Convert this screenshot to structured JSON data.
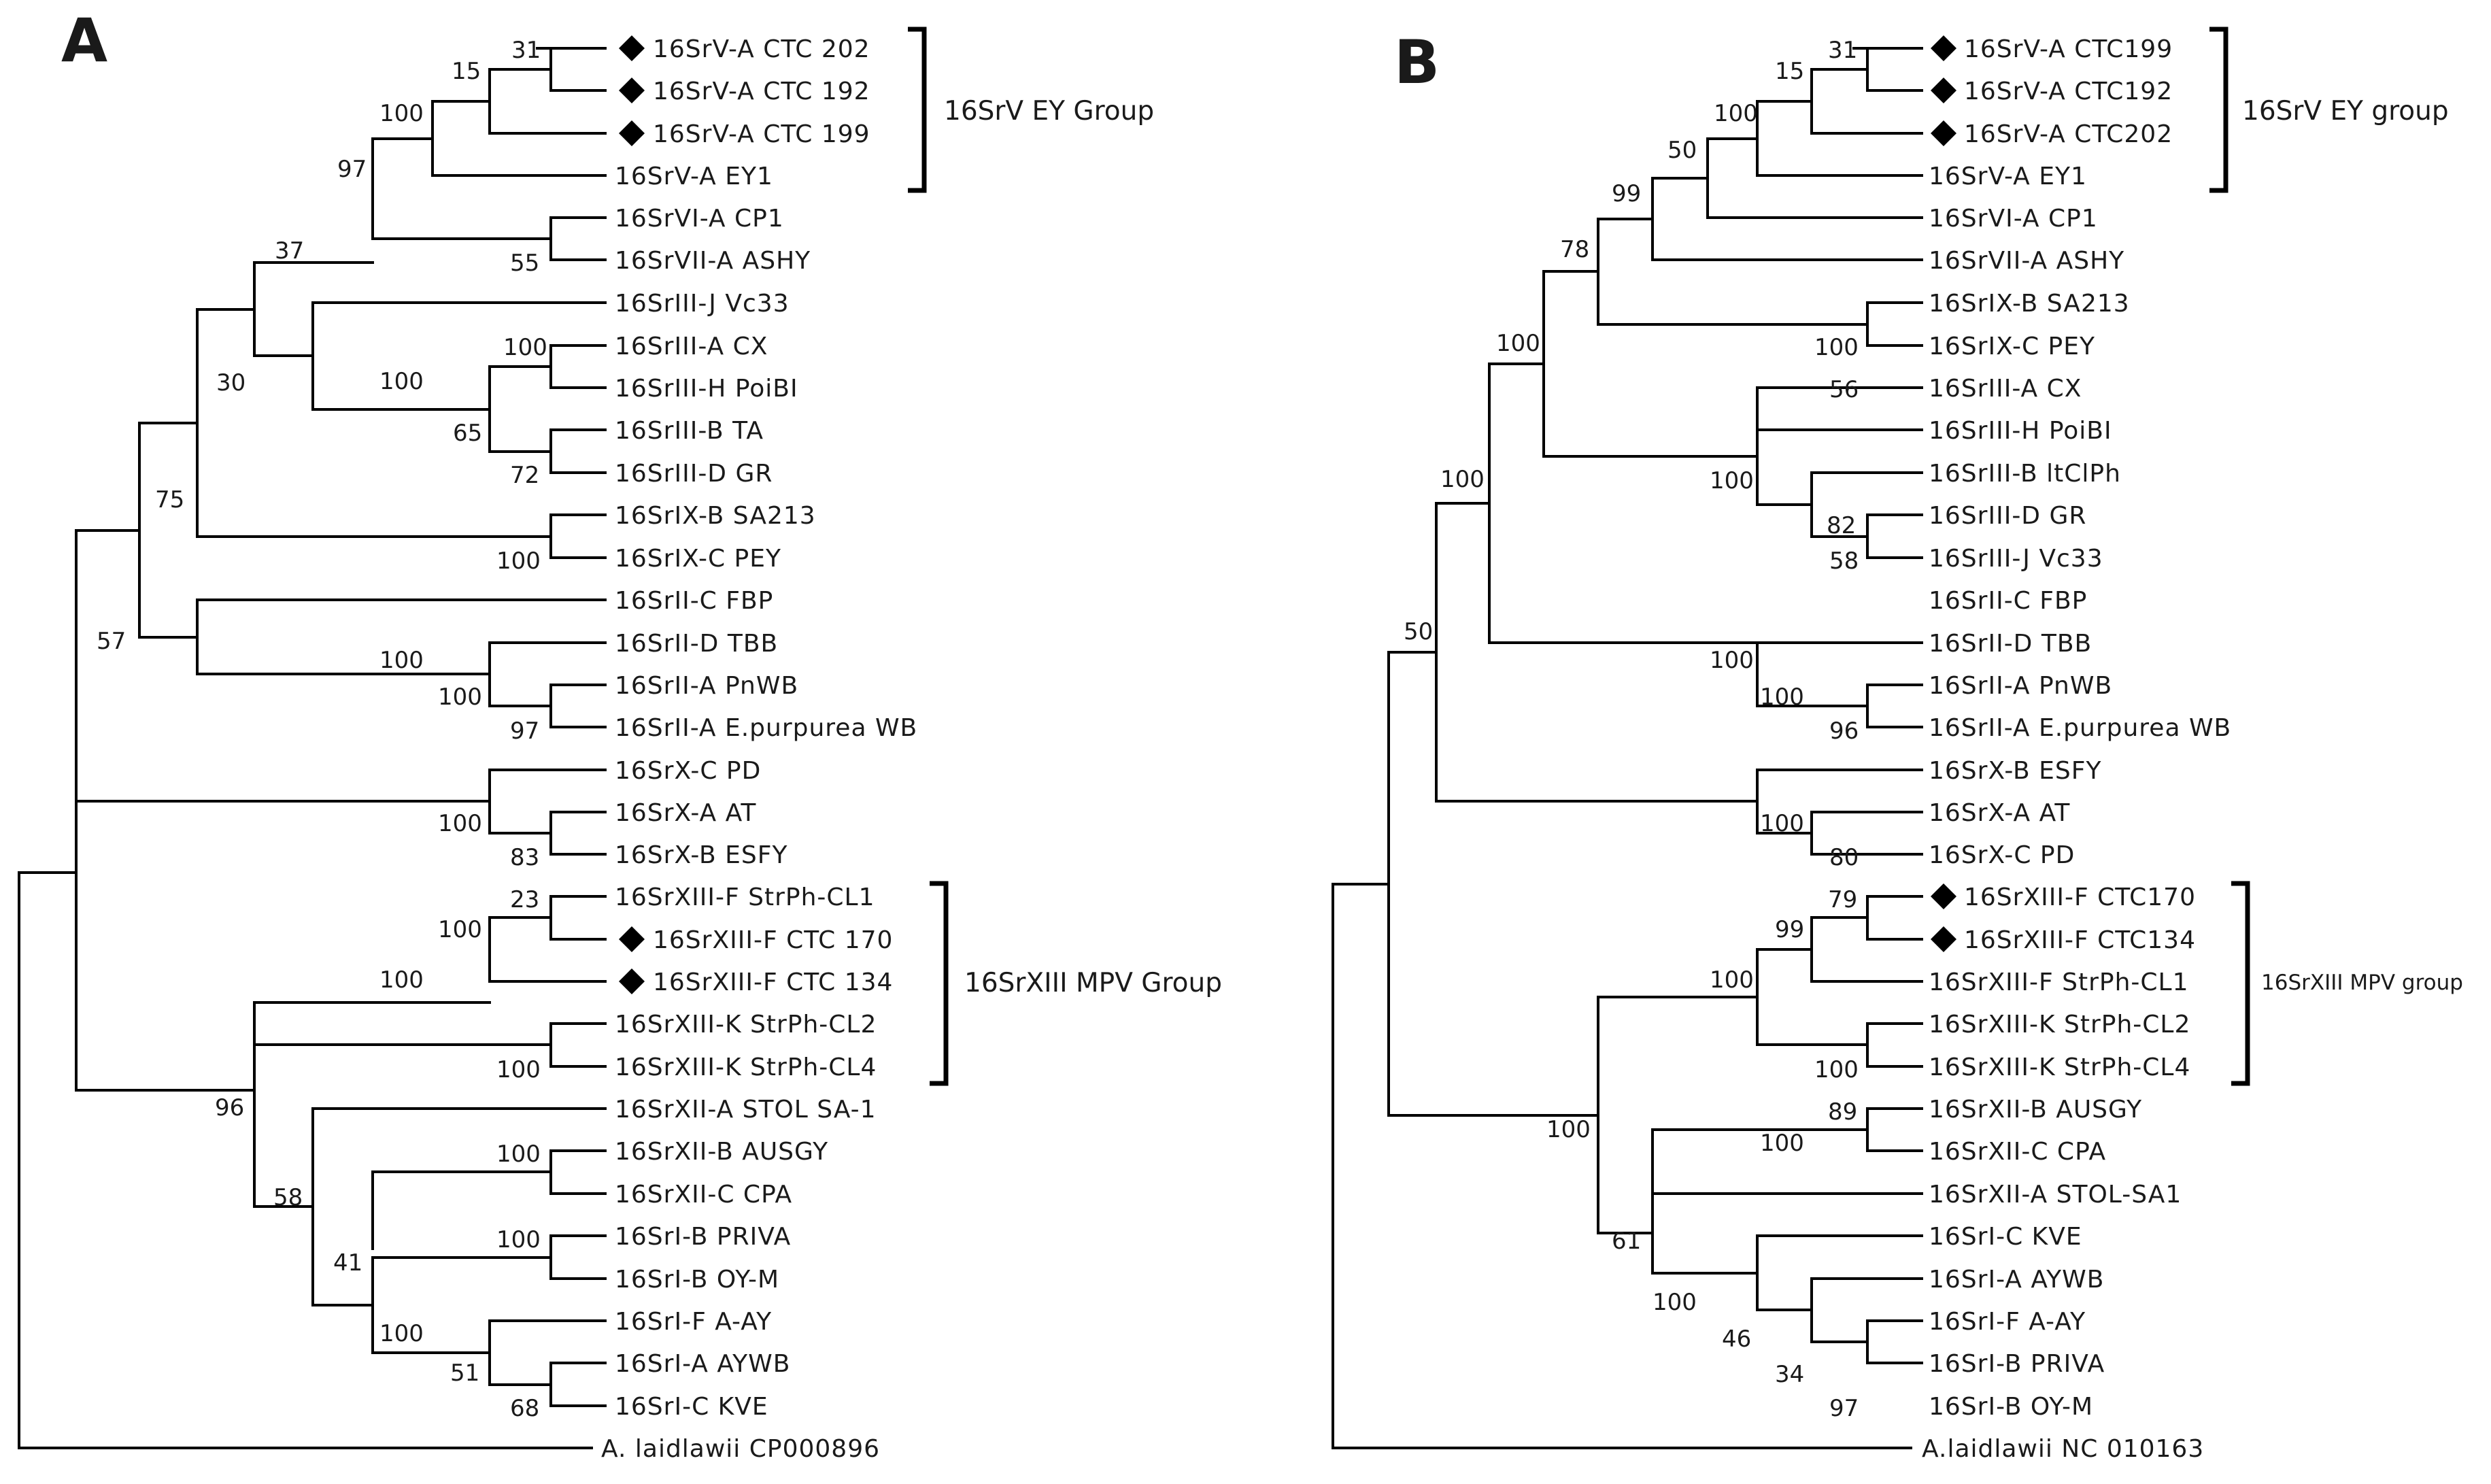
{
  "panel_a": {
    "letter": "A",
    "support": {
      "n31": "31",
      "n15": "15",
      "n100a": "100",
      "n97": "97",
      "n37": "37",
      "n55": "55",
      "n30": "30",
      "n100b": "100",
      "n100c": "100",
      "n65": "65",
      "n72": "72",
      "n75": "75",
      "n100d": "100",
      "n57": "57",
      "n100e": "100",
      "n100f": "100",
      "n97b": "97",
      "n100g": "100",
      "n83": "83",
      "n23": "23",
      "n100h": "100",
      "n100i": "100",
      "n100j": "100",
      "n96": "96",
      "n100k": "100",
      "n58": "58",
      "n100l": "100",
      "n41": "41",
      "n100m": "100",
      "n51": "51",
      "n68": "68"
    },
    "taxa": [
      "16SrV-A CTC 202",
      "16SrV-A CTC 192",
      "16SrV-A CTC 199",
      "16SrV-A EY1",
      "16SrVI-A CP1",
      "16SrVII-A ASHY",
      "16SrIII-J Vc33",
      "16SrIII-A CX",
      "16SrIII-H PoiBI",
      "16SrIII-B TA",
      "16SrIII-D GR",
      "16SrIX-B SA213",
      "16SrIX-C PEY",
      "16SrII-C FBP",
      "16SrII-D TBB",
      "16SrII-A PnWB",
      "16SrII-A E.purpurea WB",
      "16SrX-C PD",
      "16SrX-A AT",
      "16SrX-B ESFY",
      "16SrXIII-F StrPh-CL1",
      "16SrXIII-F CTC 170",
      "16SrXIII-F CTC 134",
      "16SrXIII-K StrPh-CL2",
      "16SrXIII-K StrPh-CL4",
      "16SrXII-A STOL SA-1",
      "16SrXII-B AUSGY",
      "16SrXII-C CPA",
      "16SrI-B PRIVA",
      "16SrI-B OY-M",
      "16SrI-F A-AY",
      "16SrI-A AYWB",
      "16SrI-C KVE",
      "A. laidlawii CP000896"
    ],
    "groups": {
      "ey": "16SrV EY Group",
      "mpv": "16SrXIII MPV Group"
    }
  },
  "panel_b": {
    "letter": "B",
    "support": {
      "n31": "31",
      "n15": "15",
      "n100a": "100",
      "n50a": "50",
      "n99": "99",
      "n78": "78",
      "n100b": "100",
      "n100c": "100",
      "n56": "56",
      "n100d": "100",
      "n82": "82",
      "n58": "58",
      "n100e": "100",
      "n50b": "50",
      "n100f": "100",
      "n100g": "100",
      "n96": "96",
      "n100h": "100",
      "n80": "80",
      "n79": "79",
      "n99b": "99",
      "n100i": "100",
      "n100j": "100",
      "n89": "89",
      "n100k": "100",
      "n100l": "100",
      "n61": "61",
      "n100m": "100",
      "n46": "46",
      "n34": "34",
      "n97": "97"
    },
    "taxa": [
      "16SrV-A CTC199",
      "16SrV-A CTC192",
      "16SrV-A CTC202",
      "16SrV-A EY1",
      "16SrVI-A CP1",
      "16SrVII-A ASHY",
      "16SrIX-B SA213",
      "16SrIX-C PEY",
      "16SrIII-A CX",
      "16SrIII-H PoiBI",
      "16SrIII-B ltClPh",
      "16SrIII-D GR",
      "16SrIII-J Vc33",
      "16SrII-C FBP",
      "16SrII-D TBB",
      "16SrII-A PnWB",
      "16SrII-A E.purpurea WB",
      "16SrX-B ESFY",
      "16SrX-A AT",
      "16SrX-C PD",
      "16SrXIII-F CTC170",
      "16SrXIII-F CTC134",
      "16SrXIII-F StrPh-CL1",
      "16SrXIII-K StrPh-CL2",
      "16SrXIII-K StrPh-CL4",
      "16SrXII-B AUSGY",
      "16SrXII-C CPA",
      "16SrXII-A STOL-SA1",
      "16SrI-C KVE",
      "16SrI-A AYWB",
      "16SrI-F A-AY",
      "16SrI-B PRIVA",
      "16SrI-B OY-M",
      "A.laidlawii NC 010163"
    ],
    "groups": {
      "ey": "16SrV EY group",
      "mpv": "16SrXIII MPV group"
    }
  }
}
